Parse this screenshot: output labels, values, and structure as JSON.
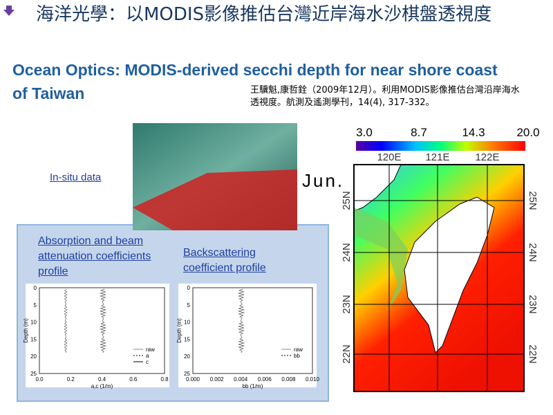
{
  "header": {
    "title": "海洋光學：以MODIS影像推估台灣近岸海水沙棋盤透視度",
    "subtitle": "Ocean Optics: MODIS-derived secchi depth for near shore coast of Taiwan",
    "citation": "王驥魁,康哲銓（2009年12月）。利用MODIS影像推估台灣沿岸海水透視度。航測及遙測學刊，14(4), 317-332。"
  },
  "insitu_label": "In-situ data",
  "profiles": [
    {
      "caption": "Absorption and beam attenuation coefficients profile",
      "ylabel": "Depth (m)",
      "xlabel": "a,c (1/m)",
      "xticks": [
        "0.0",
        "0.2",
        "0.4",
        "0.6",
        "0.8"
      ],
      "yticks": [
        "0",
        "5",
        "10",
        "15",
        "20",
        "25"
      ],
      "legend": [
        "raw",
        "a",
        "c"
      ]
    },
    {
      "caption": "Backscattering coefficient profile",
      "ylabel": "Depth (m)",
      "xlabel": "bb (1/m)",
      "xticks": [
        "0.000",
        "0.002",
        "0.004",
        "0.006",
        "0.008",
        "0.010"
      ],
      "yticks": [
        "0",
        "5",
        "10",
        "15",
        "20",
        "25"
      ],
      "legend": [
        "raw",
        "bb"
      ]
    }
  ],
  "map": {
    "month": "Jun.",
    "colorbar_ticks": [
      "3.0",
      "8.7",
      "14.3",
      "20.0"
    ],
    "lon_labels": [
      "120E",
      "121E",
      "122E"
    ],
    "lat_labels": [
      "25N",
      "24N",
      "23N",
      "22N"
    ]
  }
}
